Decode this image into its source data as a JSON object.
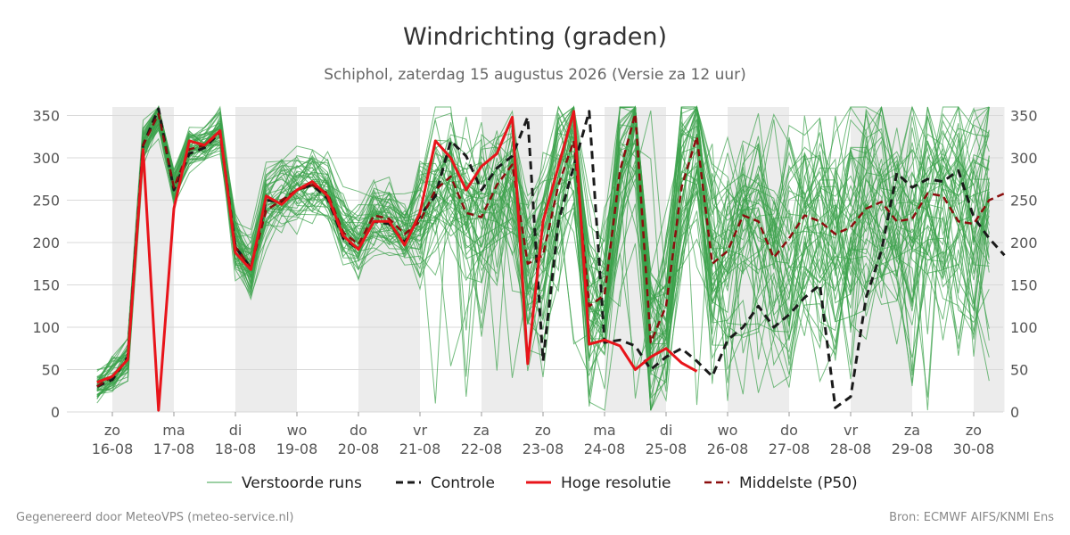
{
  "title": "Windrichting (graden)",
  "subtitle": "Schiphol, zaterdag 15 augustus 2026 (Versie za 12 uur)",
  "footer_left": "Gegenereerd door MeteoVPS (meteo-service.nl)",
  "footer_right": "Bron: ECMWF AIFS/KNMI Ens",
  "colors": {
    "ensemble": "#3aa14a",
    "control": "#1a1a1a",
    "highres": "#e8141a",
    "median": "#8b0d0d",
    "weekend_band": "#ececec",
    "grid": "#d9d9d9"
  },
  "chart_data": {
    "type": "line",
    "ylim": [
      0,
      360
    ],
    "yticks": [
      0,
      50,
      100,
      150,
      200,
      250,
      300,
      350
    ],
    "xlim": [
      0,
      14.5
    ],
    "x_unit": "days since 16-08 00:00",
    "xticks": [
      {
        "day": "zo",
        "date": "16-08",
        "x": 0
      },
      {
        "day": "ma",
        "date": "17-08",
        "x": 1
      },
      {
        "day": "di",
        "date": "18-08",
        "x": 2
      },
      {
        "day": "wo",
        "date": "19-08",
        "x": 3
      },
      {
        "day": "do",
        "date": "20-08",
        "x": 4
      },
      {
        "day": "vr",
        "date": "21-08",
        "x": 5
      },
      {
        "day": "za",
        "date": "22-08",
        "x": 6
      },
      {
        "day": "zo",
        "date": "23-08",
        "x": 7
      },
      {
        "day": "ma",
        "date": "24-08",
        "x": 8
      },
      {
        "day": "di",
        "date": "25-08",
        "x": 9
      },
      {
        "day": "wo",
        "date": "26-08",
        "x": 10
      },
      {
        "day": "do",
        "date": "27-08",
        "x": 11
      },
      {
        "day": "vr",
        "date": "28-08",
        "x": 12
      },
      {
        "day": "za",
        "date": "29-08",
        "x": 13
      },
      {
        "day": "zo",
        "date": "30-08",
        "x": 14
      }
    ],
    "shaded_bands": [
      [
        0,
        1
      ],
      [
        2,
        3
      ],
      [
        4,
        5
      ],
      [
        6,
        7
      ],
      [
        8,
        9
      ],
      [
        10,
        11
      ],
      [
        12,
        13
      ],
      [
        14,
        14.5
      ]
    ],
    "legend": {
      "placement": "bottom",
      "items": [
        {
          "label": "Verstoorde runs",
          "style": "thin"
        },
        {
          "label": "Controle",
          "style": "dashed-black"
        },
        {
          "label": "Hoge resolutie",
          "style": "solid-red"
        },
        {
          "label": "Middelste (P50)",
          "style": "dashed-darkred"
        }
      ]
    },
    "ensemble_members": 50,
    "series": [
      {
        "name": "Controle",
        "x": [
          -0.25,
          0,
          0.25,
          0.5,
          0.75,
          1,
          1.25,
          1.5,
          1.75,
          2,
          2.25,
          2.5,
          2.75,
          3,
          3.25,
          3.5,
          3.75,
          4,
          4.25,
          4.5,
          4.75,
          5,
          5.25,
          5.5,
          5.75,
          6,
          6.25,
          6.5,
          6.75,
          7,
          7.25,
          7.5,
          7.75,
          8,
          8.25,
          8.5,
          8.75,
          9,
          9.25,
          9.5,
          9.75,
          10,
          10.25,
          10.5,
          10.75,
          11,
          11.25,
          11.5,
          11.75,
          12,
          12.25,
          12.5,
          12.75,
          13,
          13.25,
          13.5,
          13.75,
          14,
          14.25,
          14.5
        ],
        "values": [
          30,
          38,
          65,
          315,
          358,
          262,
          305,
          312,
          330,
          195,
          170,
          250,
          248,
          262,
          268,
          252,
          205,
          192,
          225,
          222,
          200,
          232,
          255,
          320,
          302,
          262,
          288,
          302,
          348,
          60,
          225,
          290,
          355,
          82,
          85,
          78,
          50,
          65,
          75,
          60,
          42,
          85,
          100,
          125,
          100,
          115,
          135,
          150,
          5,
          18,
          135,
          190,
          282,
          265,
          275,
          272,
          285,
          230,
          205,
          185
        ]
      },
      {
        "name": "Hoge resolutie",
        "x": [
          -0.25,
          0,
          0.25,
          0.5,
          0.75,
          1,
          1.25,
          1.5,
          1.75,
          2,
          2.25,
          2.5,
          2.75,
          3,
          3.25,
          3.5,
          3.75,
          4,
          4.25,
          4.5,
          4.75,
          5,
          5.25,
          5.5,
          5.75,
          6,
          6.25,
          6.5,
          6.75,
          7,
          7.25,
          7.5,
          7.75,
          8,
          8.25,
          8.5,
          8.75,
          9,
          9.25,
          9.5
        ],
        "values": [
          35,
          42,
          62,
          310,
          2,
          240,
          320,
          315,
          332,
          188,
          168,
          255,
          245,
          262,
          272,
          255,
          208,
          192,
          225,
          225,
          197,
          235,
          320,
          300,
          262,
          290,
          305,
          348,
          57,
          225,
          290,
          355,
          80,
          85,
          78,
          50,
          65,
          75,
          58,
          48
        ]
      },
      {
        "name": "Middelste (P50)",
        "x": [
          -0.25,
          0,
          0.25,
          0.5,
          0.75,
          1,
          1.25,
          1.5,
          1.75,
          2,
          2.25,
          2.5,
          2.75,
          3,
          3.25,
          3.5,
          3.75,
          4,
          4.25,
          4.5,
          4.75,
          5,
          5.25,
          5.5,
          5.75,
          6,
          6.25,
          6.5,
          6.75,
          7,
          7.25,
          7.5,
          7.75,
          8,
          8.25,
          8.5,
          8.75,
          9,
          9.25,
          9.5,
          9.75,
          10,
          10.25,
          10.5,
          10.75,
          11,
          11.25,
          11.5,
          11.75,
          12,
          12.25,
          12.5,
          12.75,
          13,
          13.25,
          13.5,
          13.75,
          14,
          14.25,
          14.5
        ],
        "values": [
          30,
          42,
          62,
          315,
          352,
          265,
          310,
          315,
          330,
          195,
          170,
          238,
          250,
          262,
          268,
          258,
          212,
          198,
          232,
          228,
          210,
          225,
          262,
          278,
          235,
          230,
          268,
          292,
          175,
          185,
          268,
          320,
          125,
          138,
          285,
          352,
          82,
          125,
          265,
          325,
          175,
          190,
          232,
          225,
          182,
          205,
          232,
          225,
          210,
          218,
          240,
          248,
          225,
          228,
          258,
          255,
          225,
          222,
          250,
          258
        ]
      }
    ]
  }
}
